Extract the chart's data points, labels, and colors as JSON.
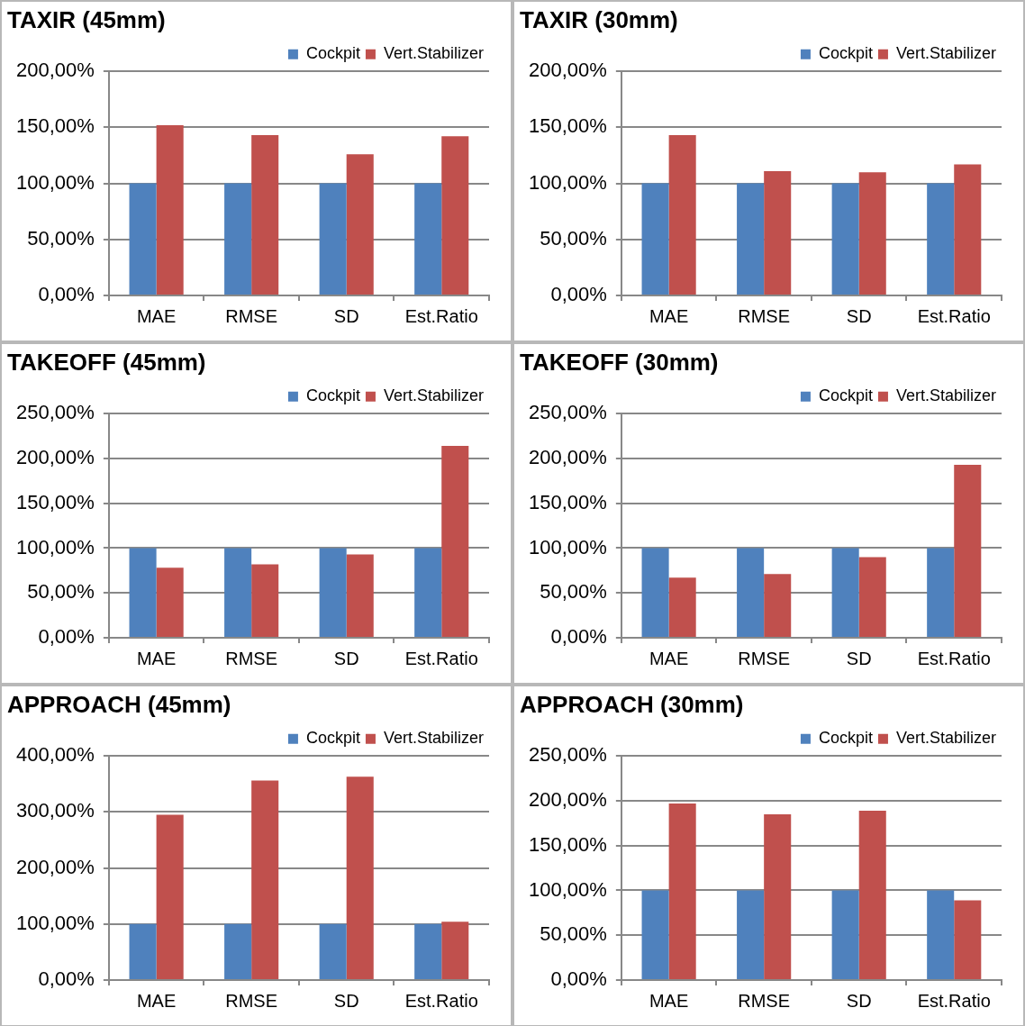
{
  "chart_data": [
    {
      "type": "bar",
      "title": "TAXIR (45mm)",
      "categories": [
        "MAE",
        "RMSE",
        "SD",
        "Est.Ratio"
      ],
      "series": [
        {
          "name": "Cockpit",
          "color": "#4f81bd",
          "values": [
            100,
            100,
            100,
            100
          ]
        },
        {
          "name": "Vert.Stabilizer",
          "color": "#c0504d",
          "values": [
            152,
            143,
            126,
            142
          ]
        }
      ],
      "ylim": [
        0,
        200
      ],
      "yticks": [
        {
          "value": 0,
          "label": "0,00%"
        },
        {
          "value": 50,
          "label": "50,00%"
        },
        {
          "value": 100,
          "label": "100,00%"
        },
        {
          "value": 150,
          "label": "150,00%"
        },
        {
          "value": 200,
          "label": "200,00%"
        }
      ],
      "grid": "y",
      "legend": "top right"
    },
    {
      "type": "bar",
      "title": "TAXIR (30mm)",
      "categories": [
        "MAE",
        "RMSE",
        "SD",
        "Est.Ratio"
      ],
      "series": [
        {
          "name": "Cockpit",
          "color": "#4f81bd",
          "values": [
            100,
            100,
            100,
            100
          ]
        },
        {
          "name": "Vert.Stabilizer",
          "color": "#c0504d",
          "values": [
            143,
            111,
            110,
            117
          ]
        }
      ],
      "ylim": [
        0,
        200
      ],
      "yticks": [
        {
          "value": 0,
          "label": "0,00%"
        },
        {
          "value": 50,
          "label": "50,00%"
        },
        {
          "value": 100,
          "label": "100,00%"
        },
        {
          "value": 150,
          "label": "150,00%"
        },
        {
          "value": 200,
          "label": "200,00%"
        }
      ],
      "grid": "y",
      "legend": "top right"
    },
    {
      "type": "bar",
      "title": "TAKEOFF (45mm)",
      "categories": [
        "MAE",
        "RMSE",
        "SD",
        "Est.Ratio"
      ],
      "series": [
        {
          "name": "Cockpit",
          "color": "#4f81bd",
          "values": [
            100,
            100,
            100,
            100
          ]
        },
        {
          "name": "Vert.Stabilizer",
          "color": "#c0504d",
          "values": [
            78,
            82,
            93,
            214
          ]
        }
      ],
      "ylim": [
        0,
        250
      ],
      "yticks": [
        {
          "value": 0,
          "label": "0,00%"
        },
        {
          "value": 50,
          "label": "50,00%"
        },
        {
          "value": 100,
          "label": "100,00%"
        },
        {
          "value": 150,
          "label": "150,00%"
        },
        {
          "value": 200,
          "label": "200,00%"
        },
        {
          "value": 250,
          "label": "250,00%"
        }
      ],
      "grid": "y",
      "legend": "top right"
    },
    {
      "type": "bar",
      "title": "TAKEOFF (30mm)",
      "categories": [
        "MAE",
        "RMSE",
        "SD",
        "Est.Ratio"
      ],
      "series": [
        {
          "name": "Cockpit",
          "color": "#4f81bd",
          "values": [
            100,
            100,
            100,
            100
          ]
        },
        {
          "name": "Vert.Stabilizer",
          "color": "#c0504d",
          "values": [
            67,
            71,
            90,
            193
          ]
        }
      ],
      "ylim": [
        0,
        250
      ],
      "yticks": [
        {
          "value": 0,
          "label": "0,00%"
        },
        {
          "value": 50,
          "label": "50,00%"
        },
        {
          "value": 100,
          "label": "100,00%"
        },
        {
          "value": 150,
          "label": "150,00%"
        },
        {
          "value": 200,
          "label": "200,00%"
        },
        {
          "value": 250,
          "label": "250,00%"
        }
      ],
      "grid": "y",
      "legend": "top right"
    },
    {
      "type": "bar",
      "title": "APPROACH (45mm)",
      "categories": [
        "MAE",
        "RMSE",
        "SD",
        "Est.Ratio"
      ],
      "series": [
        {
          "name": "Cockpit",
          "color": "#4f81bd",
          "values": [
            100,
            100,
            100,
            100
          ]
        },
        {
          "name": "Vert.Stabilizer",
          "color": "#c0504d",
          "values": [
            295,
            356,
            363,
            104
          ]
        }
      ],
      "ylim": [
        0,
        400
      ],
      "yticks": [
        {
          "value": 0,
          "label": "0,00%"
        },
        {
          "value": 100,
          "label": "100,00%"
        },
        {
          "value": 200,
          "label": "200,00%"
        },
        {
          "value": 300,
          "label": "300,00%"
        },
        {
          "value": 400,
          "label": "400,00%"
        }
      ],
      "grid": "y",
      "legend": "top right"
    },
    {
      "type": "bar",
      "title": "APPROACH (30mm)",
      "categories": [
        "MAE",
        "RMSE",
        "SD",
        "Est.Ratio"
      ],
      "series": [
        {
          "name": "Cockpit",
          "color": "#4f81bd",
          "values": [
            100,
            100,
            100,
            100
          ]
        },
        {
          "name": "Vert.Stabilizer",
          "color": "#c0504d",
          "values": [
            197,
            185,
            189,
            89
          ]
        }
      ],
      "ylim": [
        0,
        250
      ],
      "yticks": [
        {
          "value": 0,
          "label": "0,00%"
        },
        {
          "value": 50,
          "label": "50,00%"
        },
        {
          "value": 100,
          "label": "100,00%"
        },
        {
          "value": 150,
          "label": "150,00%"
        },
        {
          "value": 200,
          "label": "200,00%"
        },
        {
          "value": 250,
          "label": "250,00%"
        }
      ],
      "grid": "y",
      "legend": "top right"
    }
  ]
}
